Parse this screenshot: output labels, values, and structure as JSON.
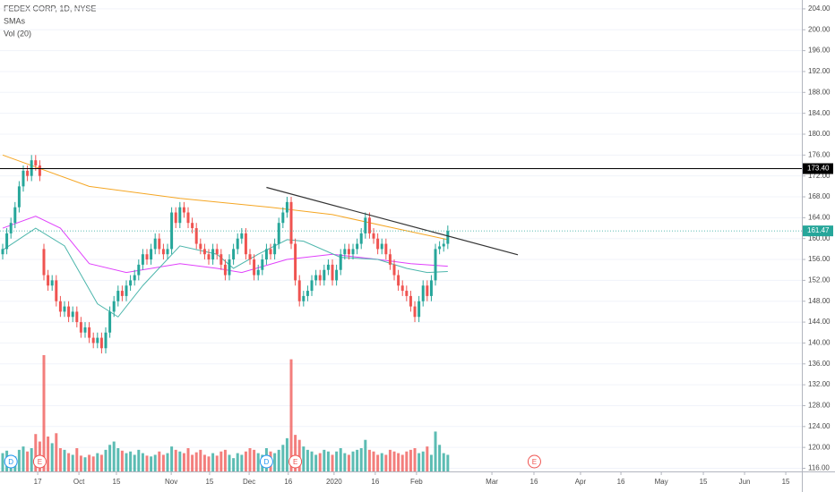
{
  "chart_data": {
    "type": "candlestick",
    "title": "FEDEX CORP, 1D, NYSE",
    "indicator_labels": [
      "SMAs",
      "Vol (20)"
    ],
    "up_color": "#26a69a",
    "down_color": "#ef5350",
    "open": [
      157,
      158,
      161,
      163,
      166,
      170,
      173,
      172,
      175,
      174,
      158,
      153,
      151,
      152,
      148,
      146,
      147,
      145,
      146,
      144,
      142,
      143,
      141,
      140,
      141,
      139,
      142,
      146,
      148,
      150,
      149,
      151,
      152,
      153,
      155,
      157,
      156,
      158,
      160,
      158,
      157,
      158,
      165,
      163,
      166,
      165,
      163,
      162,
      159,
      158,
      157,
      156,
      158,
      157,
      155,
      153,
      156,
      158,
      160,
      161,
      157,
      156,
      153,
      154,
      156,
      158,
      157,
      159,
      163,
      165,
      167,
      159,
      152,
      148,
      149,
      150,
      152,
      153,
      152,
      154,
      155,
      152,
      154,
      157,
      158,
      157,
      158,
      159,
      161,
      164,
      161,
      160,
      158,
      159,
      157,
      155,
      153,
      151,
      150,
      149,
      147,
      145,
      148,
      151,
      149,
      152,
      158,
      158.5,
      159
    ],
    "high": [
      159,
      162,
      164,
      167,
      171,
      174,
      174,
      176,
      176,
      175,
      159,
      154,
      153,
      153,
      149,
      148,
      148,
      147,
      147,
      145,
      144,
      144,
      142,
      142,
      142,
      143,
      147,
      149,
      151,
      151,
      152,
      153,
      154,
      156,
      158,
      158,
      159,
      161,
      161,
      159,
      159,
      166,
      166,
      167,
      167,
      166,
      164,
      163,
      160,
      159,
      158,
      159,
      159,
      158,
      156,
      157,
      159,
      161,
      162,
      162,
      158,
      157,
      155,
      157,
      159,
      159,
      160,
      164,
      166,
      168,
      168,
      160,
      153,
      150,
      151,
      153,
      154,
      154,
      155,
      156,
      156,
      155,
      158,
      159,
      159,
      159,
      160,
      162,
      165,
      165,
      162,
      161,
      160,
      160,
      158,
      156,
      154,
      152,
      151,
      150,
      148,
      149,
      152,
      152,
      153,
      159,
      159.5,
      160,
      162.5
    ],
    "low": [
      156,
      157,
      160,
      162,
      165,
      169,
      171,
      171,
      173,
      171,
      152,
      150,
      150,
      147,
      145,
      145,
      144,
      144,
      143,
      141,
      141,
      140,
      139,
      139,
      138,
      138,
      141,
      145,
      147,
      148,
      148,
      150,
      151,
      152,
      154,
      155,
      155,
      157,
      157,
      156,
      156,
      157,
      162,
      162,
      164,
      162,
      161,
      158,
      157,
      156,
      155,
      155,
      156,
      154,
      152,
      152,
      155,
      157,
      159,
      156,
      155,
      152,
      152,
      153,
      155,
      156,
      156,
      158,
      162,
      164,
      158,
      151,
      147,
      147,
      148,
      149,
      151,
      151,
      151,
      153,
      151,
      151,
      153,
      156,
      156,
      156,
      157,
      158,
      160,
      160,
      159,
      157,
      157,
      156,
      154,
      152,
      150,
      149,
      148,
      146,
      144,
      144,
      147,
      148,
      148,
      151,
      157,
      157.5,
      158
    ],
    "close": [
      158,
      161,
      163,
      166,
      170,
      173,
      172,
      175,
      174,
      172,
      153,
      151,
      152,
      148,
      146,
      147,
      145,
      146,
      144,
      142,
      143,
      141,
      140,
      141,
      139,
      142,
      146,
      148,
      150,
      149,
      151,
      152,
      153,
      155,
      157,
      156,
      158,
      160,
      158,
      157,
      158,
      165,
      163,
      166,
      165,
      163,
      162,
      159,
      158,
      157,
      156,
      158,
      157,
      155,
      153,
      156,
      158,
      160,
      161,
      157,
      156,
      153,
      154,
      156,
      158,
      157,
      159,
      163,
      165,
      167,
      159,
      152,
      148,
      149,
      150,
      152,
      153,
      152,
      154,
      155,
      152,
      154,
      157,
      158,
      157,
      158,
      159,
      161,
      164,
      161,
      160,
      158,
      159,
      157,
      155,
      153,
      151,
      150,
      149,
      147,
      145,
      148,
      151,
      149,
      152,
      158,
      158.5,
      159,
      161.47
    ],
    "volume": [
      2.2,
      2.5,
      2.0,
      1.8,
      2.6,
      3.0,
      2.4,
      2.8,
      4.5,
      3.6,
      14,
      4.2,
      3.4,
      4.6,
      2.8,
      2.6,
      2.2,
      2.0,
      2.8,
      1.9,
      1.7,
      2.0,
      1.8,
      2.2,
      2.0,
      2.6,
      3.2,
      3.6,
      2.8,
      2.5,
      2.2,
      2.4,
      2.0,
      2.6,
      2.2,
      1.9,
      1.8,
      2.0,
      2.4,
      2.0,
      2.2,
      3.0,
      2.6,
      2.4,
      2.2,
      2.8,
      2.0,
      2.3,
      2.6,
      2.0,
      1.8,
      2.2,
      1.9,
      2.4,
      2.6,
      2.0,
      1.6,
      2.2,
      2.0,
      2.4,
      2.8,
      2.6,
      2.2,
      2.0,
      2.8,
      2.4,
      2.2,
      2.6,
      3.2,
      4.0,
      13.5,
      4.4,
      3.8,
      3.0,
      2.6,
      2.4,
      2.0,
      2.2,
      2.6,
      2.4,
      2.0,
      2.4,
      2.8,
      2.2,
      2.0,
      2.4,
      2.6,
      2.8,
      3.8,
      2.6,
      2.4,
      2.0,
      2.2,
      2.0,
      2.6,
      2.4,
      2.2,
      2.0,
      2.4,
      2.6,
      2.8,
      2.2,
      2.4,
      3.0,
      2.0,
      4.8,
      3.2,
      2.2,
      2.0
    ],
    "vlim": [
      0,
      14
    ],
    "sma_series": [
      {
        "color": "#f5a623",
        "x": [
          0,
          21,
          43,
          65,
          80,
          95,
          108
        ],
        "values": [
          176,
          170,
          167.7,
          166,
          164.6,
          162,
          159.8
        ]
      },
      {
        "color": "#e040fb",
        "x": [
          0,
          8,
          14,
          21,
          30,
          43,
          52,
          58,
          69,
          80,
          91,
          99,
          108
        ],
        "values": [
          162,
          164.3,
          162,
          155.2,
          153.5,
          155.2,
          154.3,
          153.5,
          156,
          157,
          156,
          155.2,
          154.7
        ]
      },
      {
        "color": "#4db6ac",
        "x": [
          0,
          8,
          15,
          23,
          28,
          34,
          43,
          52,
          56,
          62,
          69,
          73,
          82,
          91,
          98,
          103,
          108
        ],
        "values": [
          157.8,
          162,
          158.6,
          147.5,
          145,
          151,
          158.6,
          157,
          154.3,
          157,
          159.8,
          159.5,
          156.4,
          156,
          154.3,
          153.5,
          153.7
        ]
      }
    ],
    "trendline": {
      "x": [
        64,
        125
      ],
      "values": [
        169.8,
        156.9
      ]
    },
    "horizontal_line": {
      "value": 173.4,
      "label": "173.40"
    },
    "last_price": {
      "value": 161.47,
      "label": "161.47"
    },
    "events": [
      {
        "x": 2,
        "label": "D",
        "color": "#2196f3"
      },
      {
        "x": 9,
        "label": "E",
        "color": "#ef5350"
      },
      {
        "x": 64,
        "label": "D",
        "color": "#2196f3"
      },
      {
        "x": 71,
        "label": "E",
        "color": "#ef5350"
      },
      {
        "x": 129,
        "label": "E",
        "color": "#ef5350"
      }
    ],
    "xlim": [
      -0.65,
      193.9
    ],
    "xticks": [
      {
        "value": 8.5,
        "label": "17"
      },
      {
        "value": 18.5,
        "label": "Oct"
      },
      {
        "value": 27.6,
        "label": "15"
      },
      {
        "value": 40.9,
        "label": "Nov"
      },
      {
        "value": 50.2,
        "label": "15"
      },
      {
        "value": 59.8,
        "label": "Dec"
      },
      {
        "value": 69.3,
        "label": "16"
      },
      {
        "value": 80.4,
        "label": "2020"
      },
      {
        "value": 90.4,
        "label": "16"
      },
      {
        "value": 100.4,
        "label": "Feb"
      },
      {
        "value": 118.7,
        "label": "Mar"
      },
      {
        "value": 128.9,
        "label": "16"
      },
      {
        "value": 140.2,
        "label": "Apr"
      },
      {
        "value": 150,
        "label": "16"
      },
      {
        "value": 159.8,
        "label": "May"
      },
      {
        "value": 170,
        "label": "15"
      },
      {
        "value": 180,
        "label": "Jun"
      },
      {
        "value": 190,
        "label": "15"
      }
    ],
    "ylim": [
      115.4,
      205.7
    ],
    "yticks": [
      {
        "value": 116,
        "label": "116.00"
      },
      {
        "value": 120,
        "label": "120.00"
      },
      {
        "value": 124,
        "label": "124.00"
      },
      {
        "value": 128,
        "label": "128.00"
      },
      {
        "value": 132,
        "label": "132.00"
      },
      {
        "value": 136,
        "label": "136.00"
      },
      {
        "value": 140,
        "label": "140.00"
      },
      {
        "value": 144,
        "label": "144.00"
      },
      {
        "value": 148,
        "label": "148.00"
      },
      {
        "value": 152,
        "label": "152.00"
      },
      {
        "value": 156,
        "label": "156.00"
      },
      {
        "value": 160,
        "label": "160.00"
      },
      {
        "value": 164,
        "label": "164.00"
      },
      {
        "value": 168,
        "label": "168.00"
      },
      {
        "value": 172,
        "label": "172.00"
      },
      {
        "value": 176,
        "label": "176.00"
      },
      {
        "value": 180,
        "label": "180.00"
      },
      {
        "value": 184,
        "label": "184.00"
      },
      {
        "value": 188,
        "label": "188.00"
      },
      {
        "value": 192,
        "label": "192.00"
      },
      {
        "value": 196,
        "label": "196.00"
      },
      {
        "value": 200,
        "label": "200.00"
      },
      {
        "value": 204,
        "label": "204.00"
      }
    ],
    "grid": true
  }
}
